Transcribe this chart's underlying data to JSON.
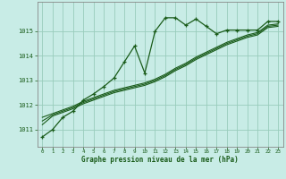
{
  "title": "Graphe pression niveau de la mer (hPa)",
  "background_color": "#c8ece6",
  "grid_color": "#99ccbb",
  "line_color": "#1a5c1a",
  "spine_color": "#888888",
  "xlim": [
    -0.5,
    23.5
  ],
  "ylim": [
    1010.3,
    1016.2
  ],
  "yticks": [
    1011,
    1012,
    1013,
    1014,
    1015
  ],
  "xticks": [
    0,
    1,
    2,
    3,
    4,
    5,
    6,
    7,
    8,
    9,
    10,
    11,
    12,
    13,
    14,
    15,
    16,
    17,
    18,
    19,
    20,
    21,
    22,
    23
  ],
  "series": {
    "main": [
      1010.7,
      1011.0,
      1011.5,
      1011.75,
      1012.2,
      1012.45,
      1012.75,
      1013.1,
      1013.75,
      1014.4,
      1013.3,
      1015.0,
      1015.55,
      1015.55,
      1015.25,
      1015.5,
      1015.2,
      1014.9,
      1015.05,
      1015.05,
      1015.05,
      1015.05,
      1015.4,
      1015.4
    ],
    "line2": [
      1011.2,
      1011.55,
      1011.7,
      1011.85,
      1012.05,
      1012.2,
      1012.35,
      1012.5,
      1012.6,
      1012.7,
      1012.8,
      1012.95,
      1013.15,
      1013.4,
      1013.6,
      1013.85,
      1014.05,
      1014.25,
      1014.45,
      1014.6,
      1014.75,
      1014.85,
      1015.15,
      1015.2
    ],
    "line3": [
      1011.35,
      1011.6,
      1011.75,
      1011.9,
      1012.1,
      1012.25,
      1012.4,
      1012.55,
      1012.65,
      1012.75,
      1012.85,
      1013.0,
      1013.2,
      1013.45,
      1013.65,
      1013.9,
      1014.1,
      1014.3,
      1014.5,
      1014.65,
      1014.8,
      1014.9,
      1015.2,
      1015.25
    ],
    "line4": [
      1011.5,
      1011.65,
      1011.8,
      1011.95,
      1012.15,
      1012.3,
      1012.45,
      1012.6,
      1012.7,
      1012.8,
      1012.9,
      1013.05,
      1013.25,
      1013.5,
      1013.7,
      1013.95,
      1014.15,
      1014.35,
      1014.55,
      1014.7,
      1014.85,
      1014.95,
      1015.25,
      1015.3
    ]
  }
}
